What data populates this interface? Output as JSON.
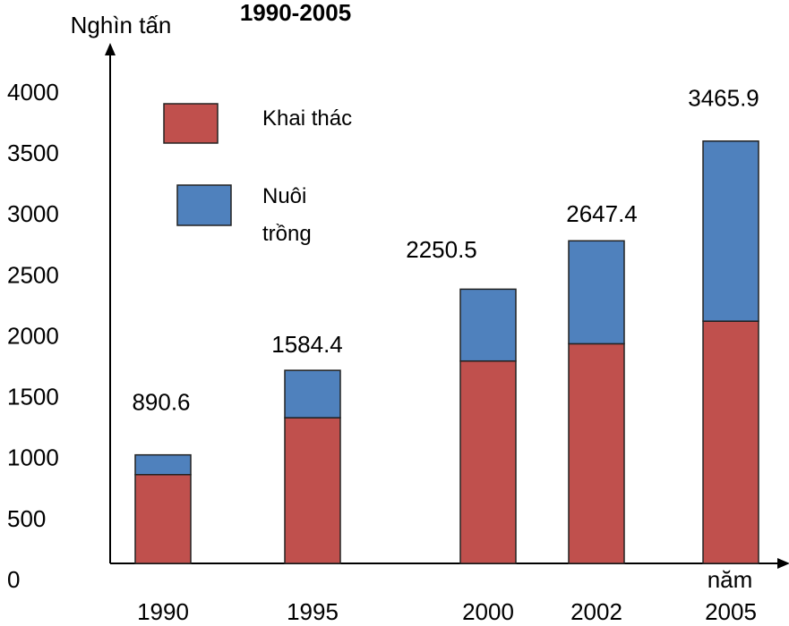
{
  "chart_data": {
    "type": "stacked_bar",
    "title": "1990-2005",
    "y_label": "Nghìn tấn",
    "x_label": "năm",
    "categories": [
      "1990",
      "1995",
      "2000",
      "2002",
      "2005"
    ],
    "series": [
      {
        "name": "Khai thác",
        "color": "#c0504d",
        "values": [
          728.5,
          1195.3,
          1660.9,
          1802.6,
          1987.9
        ]
      },
      {
        "name": "Nuôi trồng",
        "color": "#4f81bd",
        "values": [
          162.1,
          389.1,
          589.6,
          844.8,
          1478.0
        ]
      }
    ],
    "totals": [
      "890.6",
      "1584.4",
      "2250.5",
      "2647.4",
      "3465.9"
    ],
    "ylim": [
      0,
      4000
    ],
    "yticks": [
      0,
      500,
      1000,
      1500,
      2000,
      2500,
      3000,
      3500,
      4000
    ]
  }
}
